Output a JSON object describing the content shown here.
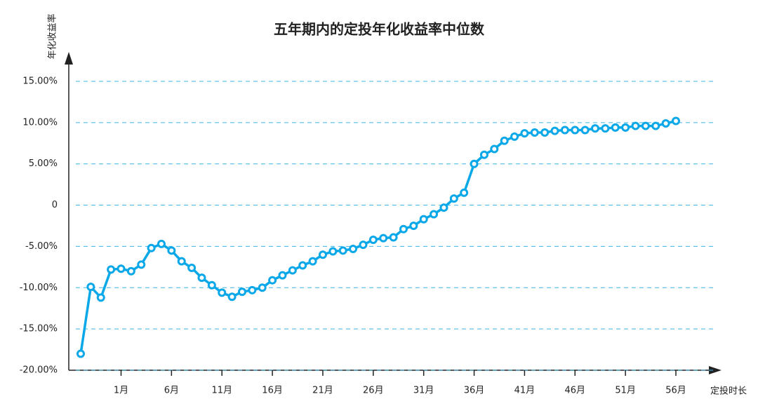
{
  "chart_data": {
    "type": "line",
    "title": "五年期内的定投年化收益率中位数",
    "y_label": "年化收益率",
    "x_label": "定投时长",
    "categories": [
      null,
      null,
      null,
      null,
      "1月",
      null,
      null,
      null,
      null,
      "6月",
      null,
      null,
      null,
      null,
      "11月",
      null,
      null,
      null,
      null,
      "16月",
      null,
      null,
      null,
      null,
      "21月",
      null,
      null,
      null,
      null,
      "26月",
      null,
      null,
      null,
      null,
      "31月",
      null,
      null,
      null,
      null,
      "36月",
      null,
      null,
      null,
      null,
      "41月",
      null,
      null,
      null,
      null,
      "46月",
      null,
      null,
      null,
      null,
      "51月",
      null,
      null,
      null,
      null,
      "56月"
    ],
    "values": [
      -18,
      -9.9,
      -11.2,
      -7.8,
      -7.7,
      -8,
      -7.2,
      -5.2,
      -4.7,
      -5.5,
      -6.8,
      -7.6,
      -8.8,
      -9.7,
      -10.6,
      -11.1,
      -10.5,
      -10.3,
      -10,
      -9.1,
      -8.5,
      -7.9,
      -7.3,
      -6.8,
      -6,
      -5.6,
      -5.5,
      -5.3,
      -4.8,
      -4.2,
      -4,
      -3.9,
      -2.9,
      -2.5,
      -1.7,
      -1.1,
      -0.3,
      0.8,
      1.5,
      5,
      6.1,
      6.8,
      7.8,
      8.3,
      8.7,
      8.8,
      8.8,
      9,
      9.1,
      9.1,
      9.1,
      9.3,
      9.3,
      9.4,
      9.4,
      9.6,
      9.6,
      9.6,
      9.9,
      10.2
    ],
    "color": "#0aa8e8",
    "ylim": [
      -20,
      15
    ],
    "yticks": [
      {
        "value": -20,
        "label": "-20.00%"
      },
      {
        "value": -15,
        "label": "-15.00%"
      },
      {
        "value": -10,
        "label": "-10.00%"
      },
      {
        "value": -5,
        "label": "-5.00%"
      },
      0,
      {
        "value": 5,
        "label": "5.00%"
      },
      {
        "value": 10,
        "label": "10.00%"
      },
      {
        "value": 15,
        "label": "15.00%"
      }
    ],
    "grid": true
  }
}
